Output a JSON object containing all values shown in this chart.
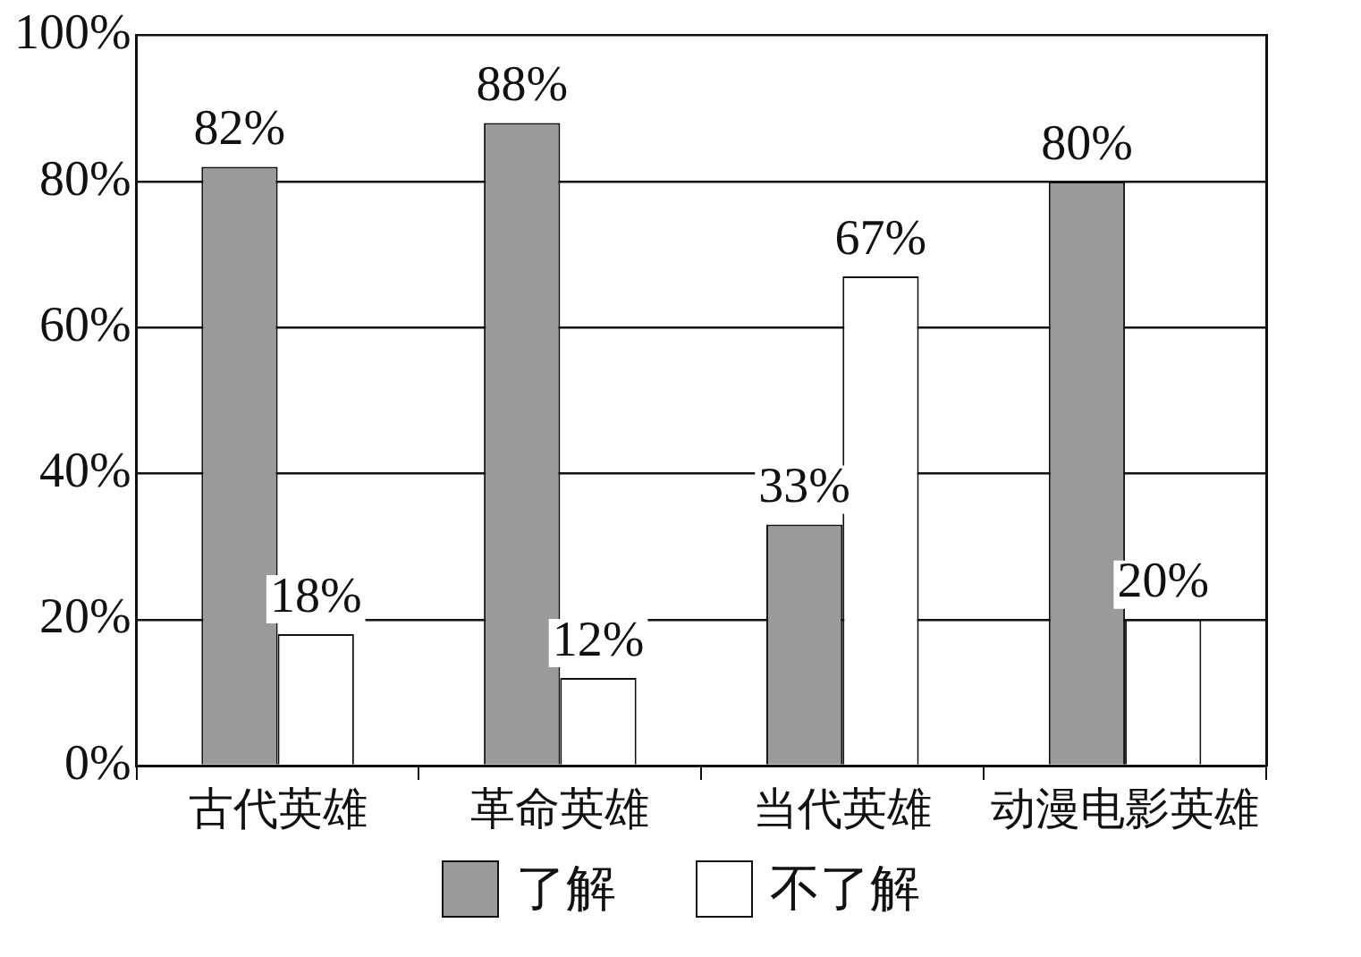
{
  "chart_data": {
    "type": "bar",
    "categories": [
      "古代英雄",
      "革命英雄",
      "当代英雄",
      "动漫电影英雄"
    ],
    "series": [
      {
        "name": "了解",
        "color": "#9a9a9a",
        "values": [
          82,
          88,
          33,
          80
        ],
        "value_labels": [
          "82%",
          "88%",
          "33%",
          "80%"
        ]
      },
      {
        "name": "不了解",
        "color": "#ffffff",
        "values": [
          18,
          12,
          67,
          20
        ],
        "value_labels": [
          "18%",
          "12%",
          "67%",
          "20%"
        ]
      }
    ],
    "ylim": [
      0,
      100
    ],
    "yticks": [
      {
        "value": 0,
        "label": "0%"
      },
      {
        "value": 20,
        "label": "20%"
      },
      {
        "value": 40,
        "label": "40%"
      },
      {
        "value": 60,
        "label": "60%"
      },
      {
        "value": 80,
        "label": "80%"
      },
      {
        "value": 100,
        "label": "100%"
      }
    ],
    "grid": "y",
    "legend": "bottom"
  }
}
